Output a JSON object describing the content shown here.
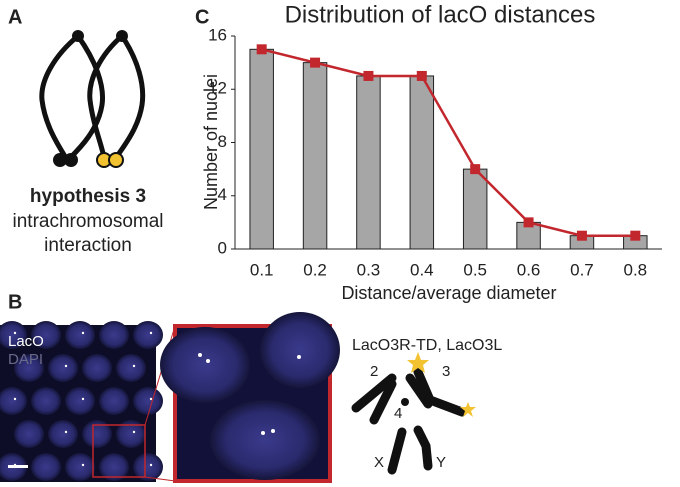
{
  "panels": {
    "a": {
      "label": "A",
      "hypothesis": "hypothesis 3",
      "description_lines": [
        "intrachromosomal",
        "interaction"
      ]
    },
    "b": {
      "label": "B",
      "channels": [
        "LacO",
        "DAPI"
      ],
      "construct": "LacO3R-TD, LacO3L",
      "chromosomes": [
        "2",
        "3",
        "4",
        "X",
        "Y"
      ]
    }
  },
  "chart_data": {
    "type": "bar",
    "panel_label": "C",
    "title": "Distribution of lacO distances",
    "x_label": "Distance/average diameter",
    "y_label": "Number of nuclei",
    "categories": [
      "0.1",
      "0.2",
      "0.3",
      "0.4",
      "0.5",
      "0.6",
      "0.7",
      "0.8"
    ],
    "values": [
      15,
      14,
      13,
      13,
      6,
      2,
      1,
      1
    ],
    "color": "#a6a6a6",
    "line": true,
    "line_color": "#c1272d",
    "ylim": [
      0,
      16
    ],
    "yticks": [
      0,
      4,
      8,
      12,
      16
    ],
    "grid": false
  }
}
